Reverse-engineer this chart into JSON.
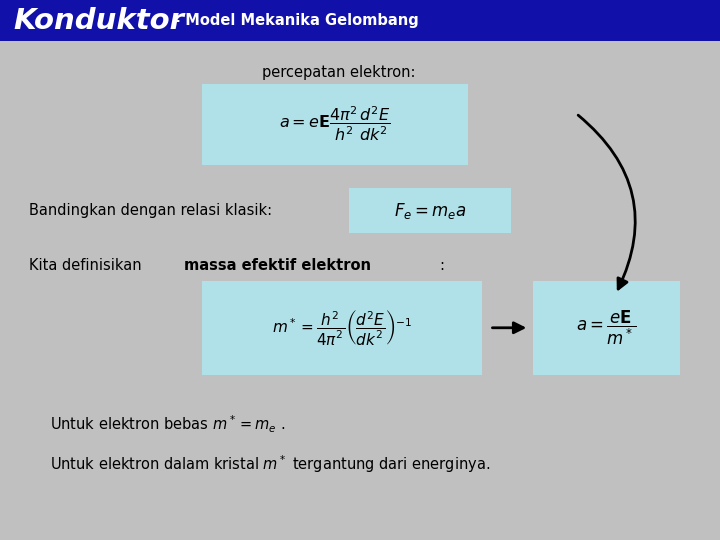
{
  "title_large": "Konduktor",
  "title_small": " - Model Mekanika Gelombang",
  "header_bg": "#1111AA",
  "header_text_color": "#FFFFFF",
  "body_bg": "#C0C0C0",
  "box_color": "#B0E0E8",
  "text_color": "#000000",
  "label1": "percepatan elektron:",
  "formula1": "$a = e\\mathbf{E}\\dfrac{4\\pi^2}{h^2}\\dfrac{d^2E}{dk^2}$",
  "label2": "Bandingkan dengan relasi klasik:",
  "formula2": "$F_e = m_e a$",
  "formula3": "$m^* = \\dfrac{h^2}{4\\pi^2}\\left(\\dfrac{d^2E}{dk^2}\\right)^{-1}$",
  "formula4": "$a = \\dfrac{e\\mathbf{E}}{m^*}$",
  "note1": "Untuk elektron bebas $m^* = m_e$ .",
  "note2": "Untuk elektron dalam kristal $m^*$ tergantung dari energinya."
}
